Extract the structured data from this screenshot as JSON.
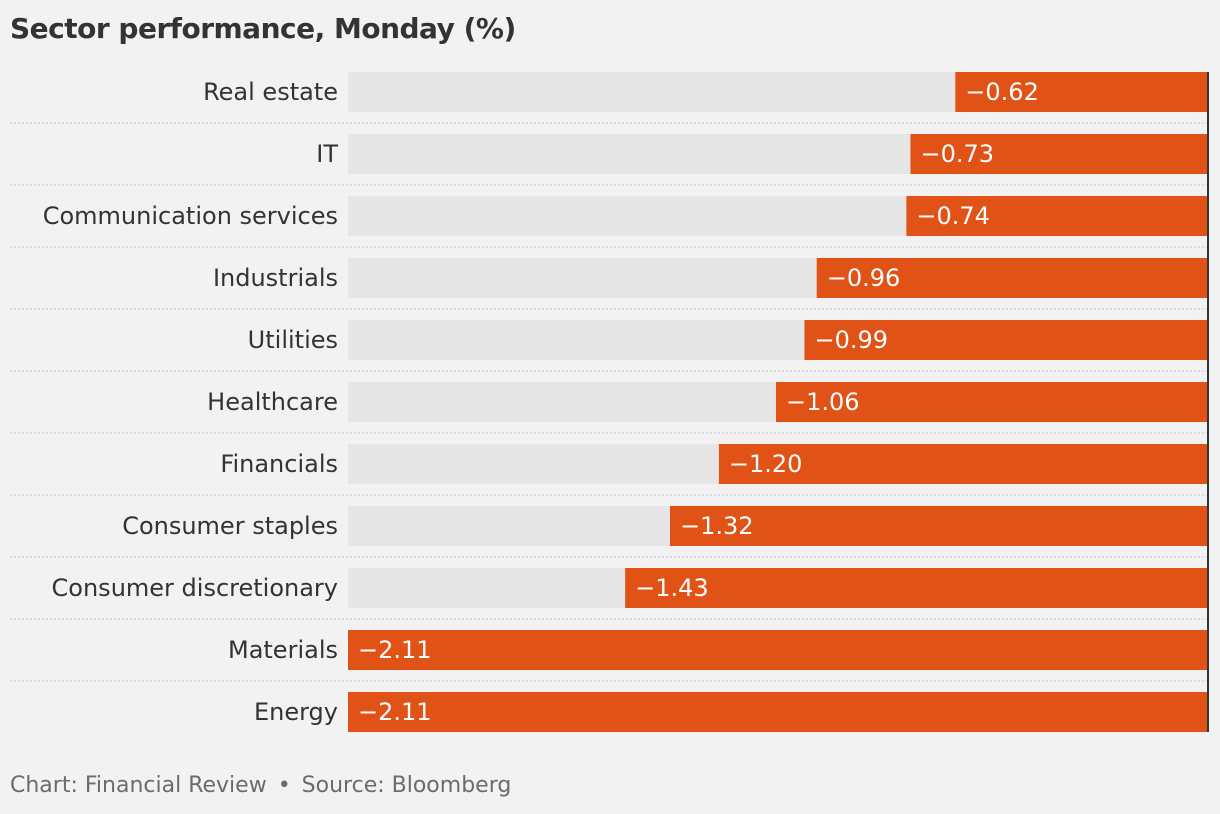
{
  "chart_data": {
    "type": "bar",
    "orientation": "horizontal",
    "title": "Sector performance, Monday (%)",
    "categories": [
      "Real estate",
      "IT",
      "Communication services",
      "Industrials",
      "Utilities",
      "Healthcare",
      "Financials",
      "Consumer staples",
      "Consumer discretionary",
      "Materials",
      "Energy"
    ],
    "values": [
      -0.62,
      -0.73,
      -0.74,
      -0.96,
      -0.99,
      -1.06,
      -1.2,
      -1.32,
      -1.43,
      -2.11,
      -2.11
    ],
    "value_labels": [
      "−0.62",
      "−0.73",
      "−0.74",
      "−0.96",
      "−0.99",
      "−1.06",
      "−1.20",
      "−1.32",
      "−1.43",
      "−2.11",
      "−2.11"
    ],
    "xlim": [
      -2.11,
      0
    ],
    "grid": false,
    "legend": "none"
  },
  "footer": {
    "credit": "Chart: Financial Review",
    "separator": "•",
    "source": "Source: Bloomberg"
  },
  "colors": {
    "bar": "#e05215",
    "track": "#e6e6e6",
    "background": "#f2f2f2",
    "divider": "#c4c4c4",
    "label_text": "#333333",
    "value_text": "#ffffff",
    "axis_line": "#333333"
  }
}
